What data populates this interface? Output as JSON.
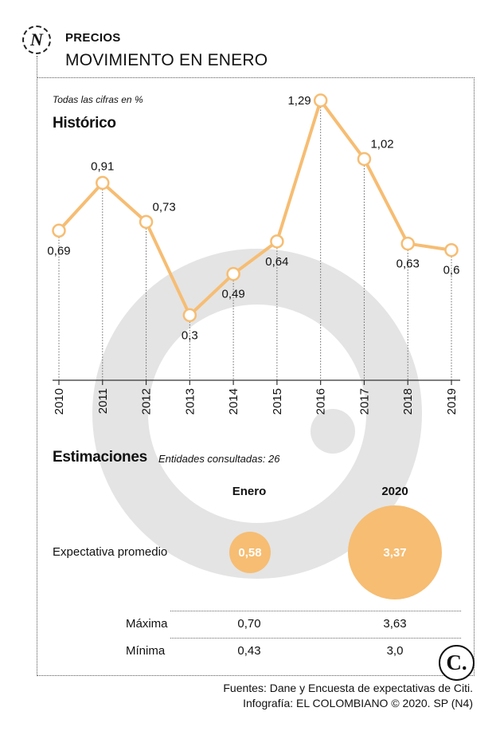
{
  "header": {
    "kicker": "PRECIOS",
    "title": "MOVIMIENTO EN ENERO"
  },
  "note": "Todas las cifras en %",
  "historico_title": "Histórico",
  "estimaciones": {
    "title": "Estimaciones",
    "note": "Entidades consultadas: 26",
    "col_enero": "Enero",
    "col_2020": "2020",
    "row_expectativa": "Expectativa promedio",
    "expectativa_enero": "0,58",
    "expectativa_2020": "3,37",
    "row_maxima": "Máxima",
    "maxima_enero": "0,70",
    "maxima_2020": "3,63",
    "row_minima": "Mínima",
    "minima_enero": "0,43",
    "minima_2020": "3,0"
  },
  "source": {
    "line1": "Fuentes: Dane y Encuesta de expectativas de Citi.",
    "line2": "Infografía: EL COLOMBIANO © 2020. SP (N4)"
  },
  "logos": {
    "n_glyph": "N",
    "c_glyph": "C."
  },
  "colors": {
    "line": "#f6bd73",
    "bubble": "#f6bd73",
    "watermark": "#e4e4e4"
  },
  "chart_data": {
    "type": "line",
    "title": "Histórico",
    "xlabel": "",
    "ylabel": "%",
    "x": [
      "2010",
      "2011",
      "2012",
      "2013",
      "2014",
      "2015",
      "2016",
      "2017",
      "2018",
      "2019"
    ],
    "values": [
      0.69,
      0.91,
      0.73,
      0.3,
      0.49,
      0.64,
      1.29,
      1.02,
      0.63,
      0.6
    ],
    "labels": [
      "0,69",
      "0,91",
      "0,73",
      "0,3",
      "0,49",
      "0,64",
      "1,29",
      "1,02",
      "0,63",
      "0,6"
    ],
    "label_pos": [
      "below",
      "above",
      "right",
      "below",
      "below",
      "below",
      "left",
      "right",
      "below",
      "below"
    ],
    "ylim": [
      0,
      1.3
    ],
    "grid": false
  }
}
